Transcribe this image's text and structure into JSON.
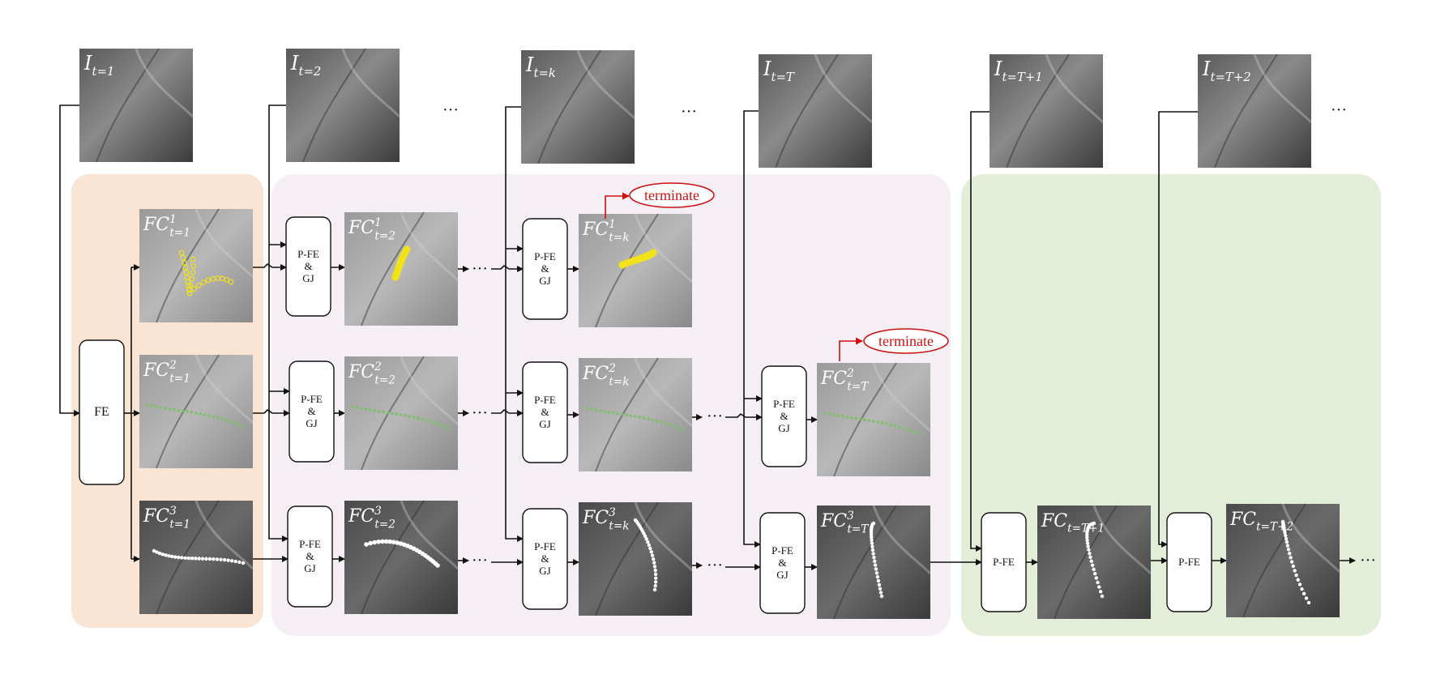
{
  "inputs": [
    {
      "base": "I",
      "sub": "t=1"
    },
    {
      "base": "I",
      "sub": "t=2"
    },
    {
      "base": "I",
      "sub": "t=k"
    },
    {
      "base": "I",
      "sub": "t=T"
    },
    {
      "base": "I",
      "sub": "t=T+1"
    },
    {
      "base": "I",
      "sub": "t=T+2"
    }
  ],
  "features": {
    "r1": [
      {
        "base": "FC",
        "sup": "1",
        "sub": "t=1"
      },
      {
        "base": "FC",
        "sup": "1",
        "sub": "t=2"
      },
      {
        "base": "FC",
        "sup": "1",
        "sub": "t=k"
      }
    ],
    "r2": [
      {
        "base": "FC",
        "sup": "2",
        "sub": "t=1"
      },
      {
        "base": "FC",
        "sup": "2",
        "sub": "t=2"
      },
      {
        "base": "FC",
        "sup": "2",
        "sub": "t=k"
      },
      {
        "base": "FC",
        "sup": "2",
        "sub": "t=T"
      }
    ],
    "r3": [
      {
        "base": "FC",
        "sup": "3",
        "sub": "t=1"
      },
      {
        "base": "FC",
        "sup": "3",
        "sub": "t=2"
      },
      {
        "base": "FC",
        "sup": "3",
        "sub": "t=k"
      },
      {
        "base": "FC",
        "sup": "3",
        "sub": "t=T"
      }
    ],
    "merged": [
      {
        "base": "FC",
        "sup": "",
        "sub": "t=T+1"
      },
      {
        "base": "FC",
        "sup": "",
        "sub": "t=T+2"
      }
    ]
  },
  "boxes": {
    "fe": "FE",
    "pfe_line1": "P-FE",
    "pfe_line2": "&",
    "pfe_line3": "GJ",
    "pfe_only": "P-FE"
  },
  "terminate": "terminate",
  "ellipsis": "···",
  "colors": {
    "init_bg": "#fae5d5",
    "track_bg": "#f5eef5",
    "merge_bg": "#e3eed8",
    "terminate": "#cc1111",
    "track1": "#f2e21a",
    "track2": "#7fbf6a",
    "track3": "#ffffff"
  }
}
